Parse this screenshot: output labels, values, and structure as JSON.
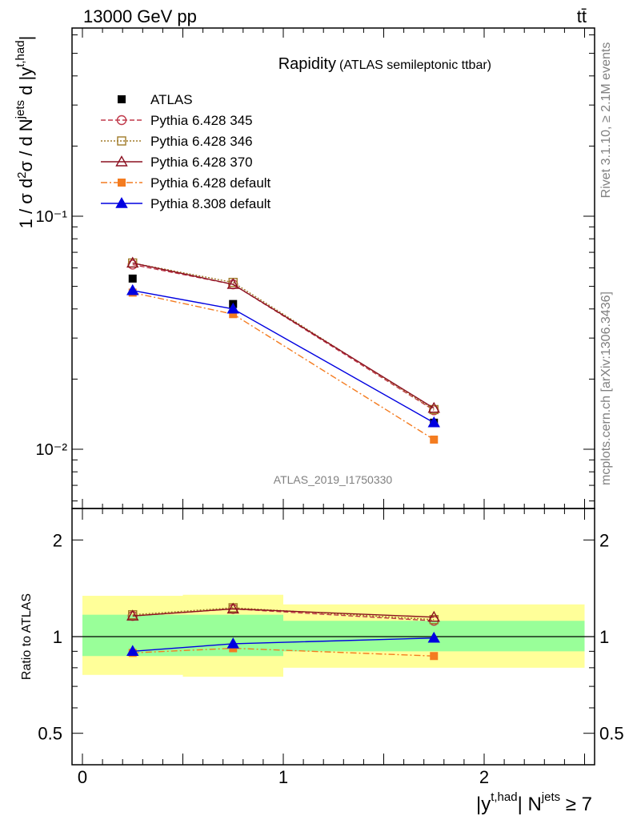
{
  "header": {
    "energy": "13000 GeV pp",
    "process": "tt̄",
    "side_top": "Rivet 3.1.10, ≥ 2.1M events",
    "side_bottom": "mcplots.cern.ch [arXiv:1306.3436]",
    "analysis_id": "ATLAS_2019_I1750330"
  },
  "chart_data": [
    {
      "type": "line",
      "title": "Rapidity",
      "subtitle": "(ATLAS semileptonic ttbar)",
      "ylabel": "1 / σ d²σ / d N^jets d |y^t,had|",
      "xlabel": "|y^t,had| N^jets ≥ 7",
      "yscale": "log",
      "xlim": [
        -0.05,
        2.55
      ],
      "ylim": [
        0.0055,
        0.7
      ],
      "ytick_labels": [
        "10⁻²",
        "10⁻¹"
      ],
      "x": [
        0.25,
        0.75,
        1.75
      ],
      "series": [
        {
          "name": "ATLAS",
          "color": "#000000",
          "marker": "square",
          "values": [
            0.054,
            0.042,
            0.013
          ]
        },
        {
          "name": "Pythia 6.428 345",
          "color": "#c0394a",
          "marker": "circle-open",
          "dash": "6,3",
          "values": [
            0.062,
            0.051,
            0.0147
          ]
        },
        {
          "name": "Pythia 6.428 346",
          "color": "#a07a28",
          "marker": "square-open",
          "dash": "2,2",
          "values": [
            0.063,
            0.052,
            0.0148
          ]
        },
        {
          "name": "Pythia 6.428 370",
          "color": "#8b1020",
          "marker": "triangle-open",
          "dash": "",
          "values": [
            0.063,
            0.051,
            0.015
          ]
        },
        {
          "name": "Pythia 6.428 default",
          "color": "#f47c20",
          "marker": "square",
          "dash": "8,3,2,3",
          "values": [
            0.047,
            0.038,
            0.011
          ]
        },
        {
          "name": "Pythia 8.308 default",
          "color": "#0000e0",
          "marker": "triangle",
          "dash": "",
          "values": [
            0.048,
            0.04,
            0.013
          ]
        }
      ],
      "legend": "top-left"
    },
    {
      "type": "line",
      "ylabel": "Ratio to ATLAS",
      "yscale": "log",
      "ylim": [
        0.42,
        2.5
      ],
      "ytick_labels": [
        "0.5",
        "1",
        "2"
      ],
      "xtick_labels": [
        "0",
        "1",
        "2"
      ],
      "bands": {
        "x_edges": [
          0,
          0.5,
          1.0,
          2.5
        ],
        "yellow": [
          [
            0.76,
            1.34
          ],
          [
            0.75,
            1.35
          ],
          [
            0.8,
            1.26
          ]
        ],
        "green": [
          [
            0.87,
            1.17
          ],
          [
            0.87,
            1.17
          ],
          [
            0.9,
            1.12
          ]
        ]
      },
      "ratios": {
        "Pythia 6.428 345": [
          1.16,
          1.22,
          1.12
        ],
        "Pythia 6.428 346": [
          1.17,
          1.23,
          1.13
        ],
        "Pythia 6.428 370": [
          1.16,
          1.22,
          1.15
        ],
        "Pythia 6.428 default": [
          0.89,
          0.92,
          0.87
        ],
        "Pythia 8.308 default": [
          0.9,
          0.95,
          0.99
        ]
      }
    }
  ]
}
